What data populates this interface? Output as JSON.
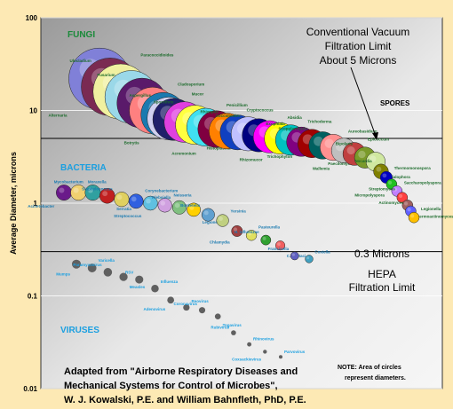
{
  "chart_data": {
    "type": "scatter",
    "title": "",
    "ylabel": "Average Diameter, microns",
    "xlabel": "",
    "y_scale": "log",
    "ylim": [
      0.01,
      100
    ],
    "y_ticks": [
      "100",
      "10",
      "1",
      "0.1",
      "0.01"
    ],
    "groups": [
      {
        "name": "FUNGI",
        "color": "#1a8a3a"
      },
      {
        "name": "BACTERIA",
        "color": "#1a9fe0"
      },
      {
        "name": "VIRUSES",
        "color": "#1a9fe0"
      }
    ],
    "zones": [
      {
        "name": "SPORES"
      }
    ],
    "limits": [
      {
        "label_lines": [
          "Conventional Vacuum",
          "Filtration Limit",
          "About 5 Microns"
        ],
        "value": 5
      },
      {
        "label_lines": [
          "HEPA",
          "Filtration Limit"
        ],
        "value": 0.3
      },
      {
        "label_lines": [
          "0.3 Microns"
        ],
        "value": 0.3
      }
    ],
    "source_lines": [
      "Adapted from \"Airborne Respiratory Diseases and",
      "Mechanical Systems for Control of Microbes\",",
      "W. J. Kowalski, P.E. and William Bahnfleth, PhD, P.E."
    ],
    "note_lines": [
      "NOTE: Area of circles",
      "represent diameters."
    ],
    "fungi": [
      {
        "label": "Alternaria",
        "x": 1,
        "y": 22,
        "color": "#8080d8"
      },
      {
        "label": "Paracoccidioides",
        "x": 2,
        "y": 18,
        "color": "#7a2a52"
      },
      {
        "label": "Ulocladium",
        "x": 3,
        "y": 16,
        "color": "#f0f0a0"
      },
      {
        "label": "Blastomyces",
        "x": 4,
        "y": 14,
        "color": "#9ad8e8"
      },
      {
        "label": "Fusarium",
        "x": 5,
        "y": 12,
        "color": "#5a1a6a"
      },
      {
        "label": "Cladosporium",
        "x": 6,
        "y": 10,
        "color": "#ff8080"
      },
      {
        "label": "Botrytis",
        "x": 7,
        "y": 9,
        "color": "#1a7ab0"
      },
      {
        "label": "Mucor",
        "x": 7.5,
        "y": 8.2,
        "color": "#d0d0f0"
      },
      {
        "label": "Aspergillus",
        "x": 8,
        "y": 8,
        "color": "#20206a"
      },
      {
        "label": "Histoplasma",
        "x": 9,
        "y": 7.5,
        "color": "#e040e0"
      },
      {
        "label": "Sporothrix",
        "x": 10,
        "y": 7,
        "color": "#ffff40"
      },
      {
        "label": "Penicillium",
        "x": 11,
        "y": 6.6,
        "color": "#40e0f0"
      },
      {
        "label": "Acremonium",
        "x": 12,
        "y": 6.3,
        "color": "#800040"
      },
      {
        "label": "Cryptococcus",
        "x": 13,
        "y": 6.0,
        "color": "#ff8000"
      },
      {
        "label": "Rhizopus",
        "x": 14,
        "y": 5.8,
        "color": "#1040c0"
      },
      {
        "label": "Trichophyton",
        "x": 15,
        "y": 5.6,
        "color": "#c0c0ff"
      },
      {
        "label": "Coccidioides",
        "x": 16,
        "y": 5.4,
        "color": "#000080"
      },
      {
        "label": "Absidia",
        "x": 17,
        "y": 5.2,
        "color": "#ff00ff"
      },
      {
        "label": "Rhizomucor",
        "x": 18,
        "y": 5.0,
        "color": "#ffff00"
      },
      {
        "label": "Trichoderma",
        "x": 19,
        "y": 4.8,
        "color": "#00c0c0"
      },
      {
        "label": "Exophiala",
        "x": 20,
        "y": 4.6,
        "color": "#800080"
      },
      {
        "label": "Paecilomyces",
        "x": 21,
        "y": 4.4,
        "color": "#a00000"
      },
      {
        "label": "Scopulariopsis",
        "x": 22,
        "y": 4.2,
        "color": "#006060"
      },
      {
        "label": "Aureobasidium",
        "x": 23,
        "y": 4.0,
        "color": "#ff9090"
      },
      {
        "label": "Wallemia",
        "x": 24,
        "y": 3.7,
        "color": "#bfbfbf"
      },
      {
        "label": "Epicoccum",
        "x": 25,
        "y": 3.4,
        "color": "#c04040"
      },
      {
        "label": "Bipolaris",
        "x": 26,
        "y": 3.1,
        "color": "#7a9a2a"
      },
      {
        "label": "Phialophora",
        "x": 27,
        "y": 2.8,
        "color": "#d0e8a0"
      },
      {
        "label": "Nocardia",
        "x": 27.5,
        "y": 2.2,
        "color": "#808000"
      },
      {
        "label": "Thermomonospora",
        "x": 28,
        "y": 1.9,
        "color": "#0000c0"
      },
      {
        "label": "Micropolyspora",
        "x": 28.5,
        "y": 1.6,
        "color": "#20c020"
      },
      {
        "label": "Saccharopolyspora",
        "x": 29,
        "y": 1.35,
        "color": "#c080ff"
      },
      {
        "label": "Streptomyces",
        "x": 29.5,
        "y": 1.15,
        "color": "#ff4040"
      },
      {
        "label": "Thermoactinomyces",
        "x": 30,
        "y": 0.95,
        "color": "#a06060"
      },
      {
        "label": "Actinomyces",
        "x": 30.3,
        "y": 0.82,
        "color": "#6060ff"
      },
      {
        "label": "Legionella",
        "x": 30.6,
        "y": 0.7,
        "color": "#ffc000"
      }
    ],
    "bacteria": [
      {
        "label": "Acinetobacter",
        "x": 1,
        "y": 1.3,
        "color": "#6a1a8a"
      },
      {
        "label": "Moraxella",
        "x": 2,
        "y": 1.3,
        "color": "#f0d070"
      },
      {
        "label": "Mycobacterium",
        "x": 3,
        "y": 1.3,
        "color": "#30a0a0"
      },
      {
        "label": "Serratia",
        "x": 4,
        "y": 1.2,
        "color": "#c02020"
      },
      {
        "label": "Staphylococcus",
        "x": 5,
        "y": 1.1,
        "color": "#e0d060"
      },
      {
        "label": "Corynebacterium",
        "x": 6,
        "y": 1.05,
        "color": "#3060e0"
      },
      {
        "label": "Streptococcus",
        "x": 7,
        "y": 1.0,
        "color": "#60c0e0"
      },
      {
        "label": "Neisseria",
        "x": 8,
        "y": 0.95,
        "color": "#d0a0e0"
      },
      {
        "label": "Klebsiella",
        "x": 9,
        "y": 0.9,
        "color": "#80c080"
      },
      {
        "label": "Legionella",
        "x": 10,
        "y": 0.85,
        "color": "#ffd000"
      },
      {
        "label": "Bordetella",
        "x": 11,
        "y": 0.75,
        "color": "#60a0d0"
      },
      {
        "label": "Yersinia",
        "x": 12,
        "y": 0.65,
        "color": "#c0d080"
      },
      {
        "label": "Chlamydia",
        "x": 13,
        "y": 0.5,
        "color": "#a04040"
      },
      {
        "label": "Pasteurella",
        "x": 14,
        "y": 0.45,
        "color": "#e0e060"
      },
      {
        "label": "H. influenzae",
        "x": 15,
        "y": 0.4,
        "color": "#30a030"
      },
      {
        "label": "C. psittaci",
        "x": 16,
        "y": 0.35,
        "color": "#f06060"
      },
      {
        "label": "Francisella",
        "x": 17,
        "y": 0.27,
        "color": "#6060c0"
      },
      {
        "label": "Coxiella",
        "x": 18,
        "y": 0.25,
        "color": "#40a0c0"
      }
    ],
    "viruses": [
      {
        "label": "Mumps",
        "x": 1,
        "y": 0.22
      },
      {
        "label": "Varicella",
        "x": 2,
        "y": 0.2
      },
      {
        "label": "Paramyxovirus",
        "x": 3,
        "y": 0.18
      },
      {
        "label": "Measles",
        "x": 4,
        "y": 0.16
      },
      {
        "label": "RSV",
        "x": 5,
        "y": 0.15
      },
      {
        "label": "Influenza",
        "x": 6,
        "y": 0.12
      },
      {
        "label": "Adenovirus",
        "x": 7,
        "y": 0.09
      },
      {
        "label": "Reovirus",
        "x": 8,
        "y": 0.075
      },
      {
        "label": "Coronavirus",
        "x": 9,
        "y": 0.07
      },
      {
        "label": "Togavirus",
        "x": 10,
        "y": 0.06
      },
      {
        "label": "Rubivirus",
        "x": 11,
        "y": 0.04
      },
      {
        "label": "Rhinovirus",
        "x": 12,
        "y": 0.03
      },
      {
        "label": "Coxsackievirus",
        "x": 13,
        "y": 0.025
      },
      {
        "label": "Parvovirus",
        "x": 14,
        "y": 0.022
      }
    ]
  }
}
